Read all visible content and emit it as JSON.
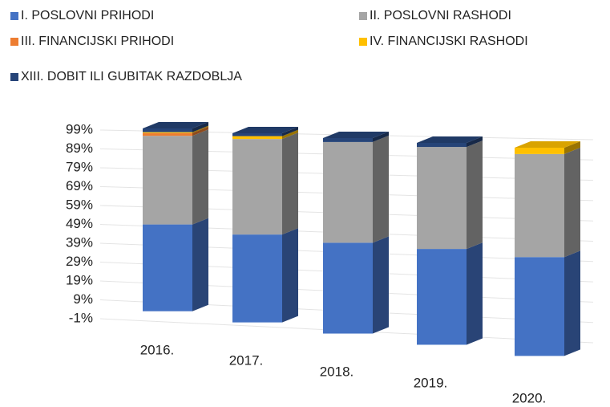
{
  "chart_data": {
    "type": "bar3d_stacked",
    "categories": [
      "2016.",
      "2017.",
      "2018.",
      "2019.",
      "2020."
    ],
    "series": [
      {
        "name": "I. POSLOVNI PRIHODI",
        "color": "#4472c4",
        "values": [
          47,
          46,
          46,
          47,
          47
        ]
      },
      {
        "name": "II. POSLOVNI RASHODI",
        "color": "#a5a5a5",
        "values": [
          48,
          50,
          51,
          50,
          49
        ]
      },
      {
        "name": "III. FINANCIJSKI PRIHODI",
        "color": "#ed7d31",
        "values": [
          1.5,
          0,
          0,
          0,
          0
        ]
      },
      {
        "name": "IV. FINANCIJSKI RASHODI",
        "color": "#ffc000",
        "values": [
          0.5,
          1.5,
          0,
          0,
          3
        ]
      },
      {
        "name": "XIII. DOBIT ILI GUBITAK RAZDOBLJA",
        "color": "#264478",
        "values": [
          2,
          1.5,
          2,
          2,
          0
        ]
      }
    ],
    "ylim": [
      -1,
      99
    ],
    "yticks": [
      {
        "value": -1,
        "label": "-1%"
      },
      {
        "value": 9,
        "label": "9%"
      },
      {
        "value": 19,
        "label": "19%"
      },
      {
        "value": 29,
        "label": "29%"
      },
      {
        "value": 39,
        "label": "39%"
      },
      {
        "value": 49,
        "label": "49%"
      },
      {
        "value": 59,
        "label": "59%"
      },
      {
        "value": 69,
        "label": "69%"
      },
      {
        "value": 79,
        "label": "79%"
      },
      {
        "value": 89,
        "label": "89%"
      },
      {
        "value": 99,
        "label": "99%"
      }
    ],
    "grid": true,
    "legend": "top"
  }
}
